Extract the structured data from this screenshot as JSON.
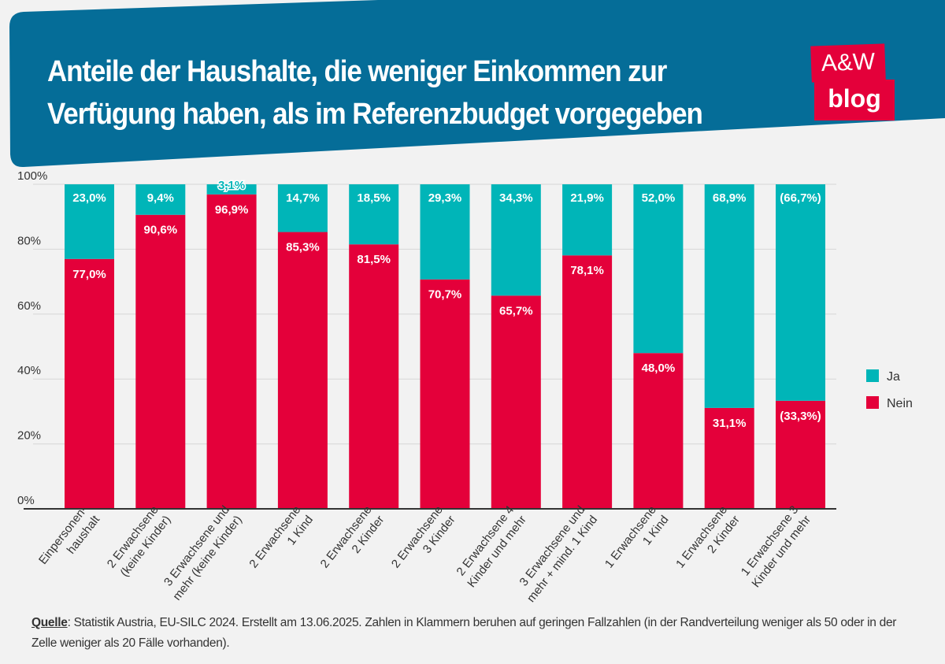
{
  "header": {
    "title_line1": "Anteile der Haushalte, die weniger Einkommen zur",
    "title_line2": "Verfügung haben, als im Referenzbudget vorgegeben",
    "logo_text_top": "A&W",
    "logo_text_bottom": "blog"
  },
  "colors": {
    "header": "#056d98",
    "ja": "#00b5b8",
    "nein": "#e4003a",
    "background": "#f2f2f2"
  },
  "chart_data": {
    "type": "bar",
    "stacked": true,
    "ylim": [
      0,
      100
    ],
    "yticks": [
      "0%",
      "20%",
      "40%",
      "60%",
      "80%",
      "100%"
    ],
    "grid": true,
    "legend_position": "right",
    "categories": [
      [
        "Einpersonen-",
        "haushalt"
      ],
      [
        "2 Erwachsene",
        "(keine Kinder)"
      ],
      [
        "3 Erwachsene und",
        "mehr (keine Kinder)"
      ],
      [
        "2 Erwachsene",
        "1 Kind"
      ],
      [
        "2 Erwachsene",
        "2 Kinder"
      ],
      [
        "2 Erwachsene",
        "3 Kinder"
      ],
      [
        "2 Erwachsene 4",
        "Kinder und mehr"
      ],
      [
        "3 Erwachsene und",
        "mehr + mind. 1 Kind"
      ],
      [
        "1 Erwachsene",
        "1 Kind"
      ],
      [
        "1 Erwachsene",
        "2 Kinder"
      ],
      [
        "1 Erwachsene 3",
        "Kinder und mehr"
      ]
    ],
    "series": [
      {
        "name": "Nein",
        "color": "#e4003a",
        "values": [
          77.0,
          90.6,
          96.9,
          85.3,
          81.5,
          70.7,
          65.7,
          78.1,
          48.0,
          31.1,
          33.3
        ],
        "labels": [
          "77,0%",
          "90,6%",
          "96,9%",
          "85,3%",
          "81,5%",
          "70,7%",
          "65,7%",
          "78,1%",
          "48,0%",
          "31,1%",
          "(33,3%)"
        ]
      },
      {
        "name": "Ja",
        "color": "#00b5b8",
        "values": [
          23.0,
          9.4,
          3.1,
          14.7,
          18.5,
          29.3,
          34.3,
          21.9,
          52.0,
          68.9,
          66.7
        ],
        "labels": [
          "23,0%",
          "9,4%",
          "3,1%",
          "14,7%",
          "18,5%",
          "29,3%",
          "34,3%",
          "21,9%",
          "52,0%",
          "68,9%",
          "(66,7%)"
        ]
      }
    ]
  },
  "source": {
    "label": "Quelle",
    "text": ": Statistik Austria, EU-SILC 2024. Erstellt am 13.06.2025. Zahlen in Klammern beruhen auf geringen Fallzahlen (in der Randverteilung weniger als 50 oder in der Zelle weniger als 20 Fälle vorhanden)."
  }
}
